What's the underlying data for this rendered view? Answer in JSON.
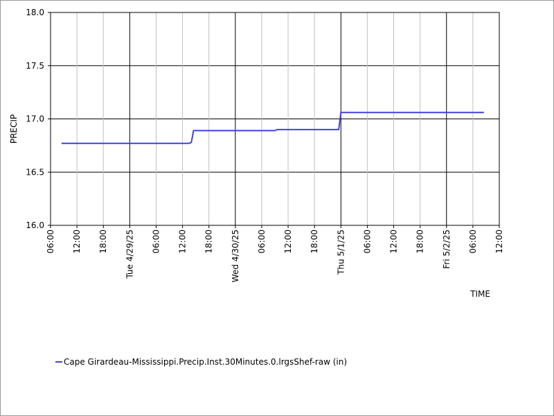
{
  "chart_data": {
    "type": "line",
    "x_label": "TIME",
    "y_label": "PRECIP",
    "x": [
      "2025-04-28T08:30",
      "2025-04-29T13:30",
      "2025-04-29T14:00",
      "2025-04-29T14:30",
      "2025-04-30T09:00",
      "2025-04-30T09:30",
      "2025-04-30T23:30",
      "2025-05-01T00:00",
      "2025-05-02T08:30"
    ],
    "series": [
      {
        "name": "Cape Girardeau-Mississippi.Precip.Inst.30Minutes.0.lrgsShef-raw (in)",
        "color": "#4040e0",
        "values": [
          16.77,
          16.77,
          16.78,
          16.89,
          16.89,
          16.9,
          16.9,
          17.06,
          17.06
        ]
      }
    ],
    "xlim": [
      "2025-04-28T06:00",
      "2025-05-02T12:00"
    ],
    "xticks": [
      {
        "value": "2025-04-28T06:00",
        "label": "06:00"
      },
      {
        "value": "2025-04-28T12:00",
        "label": "12:00"
      },
      {
        "value": "2025-04-28T18:00",
        "label": "18:00"
      },
      {
        "value": "2025-04-29T00:00",
        "label": "Tue 4/29/25"
      },
      {
        "value": "2025-04-29T06:00",
        "label": "06:00"
      },
      {
        "value": "2025-04-29T12:00",
        "label": "12:00"
      },
      {
        "value": "2025-04-29T18:00",
        "label": "18:00"
      },
      {
        "value": "2025-04-30T00:00",
        "label": "Wed 4/30/25"
      },
      {
        "value": "2025-04-30T06:00",
        "label": "06:00"
      },
      {
        "value": "2025-04-30T12:00",
        "label": "12:00"
      },
      {
        "value": "2025-04-30T18:00",
        "label": "18:00"
      },
      {
        "value": "2025-05-01T00:00",
        "label": "Thu 5/1/25"
      },
      {
        "value": "2025-05-01T06:00",
        "label": "06:00"
      },
      {
        "value": "2025-05-01T12:00",
        "label": "12:00"
      },
      {
        "value": "2025-05-01T18:00",
        "label": "18:00"
      },
      {
        "value": "2025-05-02T00:00",
        "label": "Fri 5/2/25"
      },
      {
        "value": "2025-05-02T06:00",
        "label": "06:00"
      },
      {
        "value": "2025-05-02T12:00",
        "label": "12:00"
      }
    ],
    "ylim": [
      16,
      18
    ],
    "yticks": [
      {
        "value": 16,
        "label": "16.0"
      },
      16.5,
      {
        "value": 17,
        "label": "17.0"
      },
      17.5,
      {
        "value": 18,
        "label": "18.0"
      }
    ],
    "grid": true
  }
}
